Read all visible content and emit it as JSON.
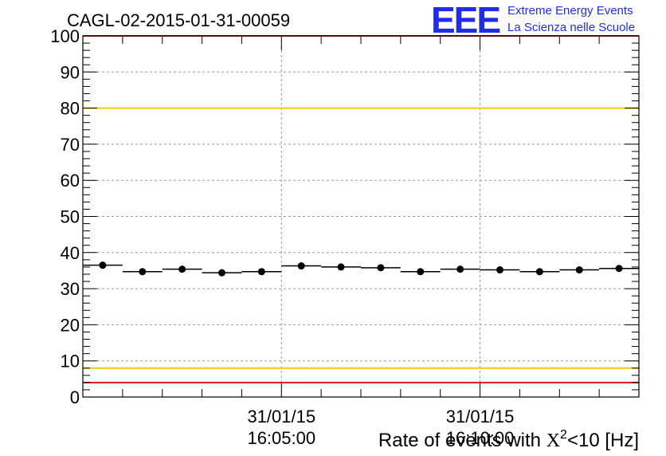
{
  "header": {
    "run_title": "CAGL-02-2015-01-31-00059",
    "logo_mark": "EEE",
    "logo_line1": "Extreme Energy Events",
    "logo_line2": "La Scienza nelle Scuole"
  },
  "chart_data": {
    "type": "scatter",
    "title": "CAGL-02-2015-01-31-00059",
    "xlabel_prefix": "Rate of events with ",
    "xlabel_symbol": "X",
    "xlabel_sup": "2",
    "xlabel_suffix": "<10 [Hz]",
    "ylabel": "",
    "ylim": [
      0,
      100
    ],
    "y_ticks": [
      0,
      10,
      20,
      30,
      40,
      50,
      60,
      70,
      80,
      90,
      100
    ],
    "y_tick_labels": [
      "0",
      "10",
      "20",
      "30",
      "40",
      "50",
      "60",
      "70",
      "80",
      "90",
      "100"
    ],
    "x_time_ticks": [
      {
        "date": "31/01/15",
        "time": "16:05:00",
        "bin": 5
      },
      {
        "date": "31/01/15",
        "time": "16:10:00",
        "bin": 10
      }
    ],
    "grid": true,
    "series": [
      {
        "values": [
          36.5,
          34.7,
          35.4,
          34.4,
          34.7,
          36.3,
          36.0,
          35.8,
          34.7,
          35.4,
          35.2,
          34.7,
          35.2,
          35.6
        ]
      }
    ],
    "reference_lines": [
      {
        "y": 100,
        "color": "#e8141c"
      },
      {
        "y": 80,
        "color": "#f2cc00"
      },
      {
        "y": 8,
        "color": "#f2cc00"
      },
      {
        "y": 4,
        "color": "#e8141c"
      }
    ]
  }
}
